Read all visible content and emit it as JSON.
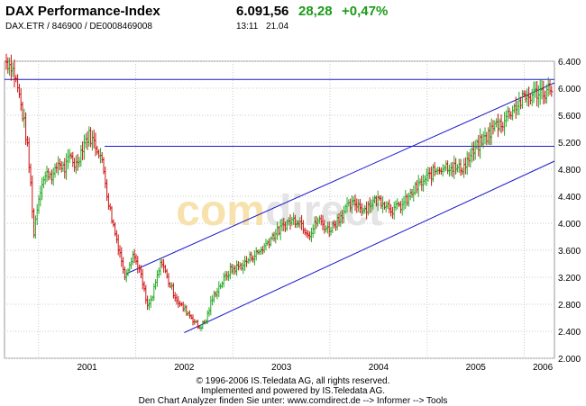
{
  "header": {
    "title": "DAX Performance-Index",
    "subtitle": "DAX.ETR / 846900 / DE0008469008",
    "price": "6.091,56",
    "change": "28,28",
    "change_pct": "+0,47%",
    "time": "13:11",
    "date": "21.04",
    "positive_color": "#1a9a1a"
  },
  "watermark": "comdirect",
  "footer": {
    "line1": "© 1996-2006 IS.Teledata AG, all rights reserved.",
    "line2": "Implemented and powered by IS.Teledata AG.",
    "line3": "Den Chart Analyzer finden Sie unter: www.comdirect.de --> Informer --> Tools"
  },
  "chart_data": {
    "type": "line",
    "title": "DAX Performance-Index",
    "xlabel": "",
    "ylabel": "",
    "x_ticks": [
      "2001",
      "2002",
      "2003",
      "2004",
      "2005",
      "2006"
    ],
    "y_ticks": [
      "2.000",
      "2.400",
      "2.800",
      "3.200",
      "3.600",
      "4.000",
      "4.400",
      "4.800",
      "5.200",
      "5.600",
      "6.000",
      "6.400"
    ],
    "ylim": [
      2000,
      6400
    ],
    "xlim": [
      2000.65,
      2006.31
    ],
    "grid": true,
    "up_color": "#22aa22",
    "down_color": "#cc1111",
    "trendline_color": "#1a1acc",
    "series": [
      {
        "values": [
          [
            2000.65,
            6400
          ],
          [
            2000.72,
            6350
          ],
          [
            2000.78,
            6050
          ],
          [
            2000.85,
            5500
          ],
          [
            2000.88,
            5200
          ],
          [
            2000.93,
            4400
          ],
          [
            2000.95,
            3800
          ],
          [
            2000.98,
            4200
          ],
          [
            2001.03,
            4600
          ],
          [
            2001.1,
            4750
          ],
          [
            2001.16,
            4700
          ],
          [
            2001.2,
            4900
          ],
          [
            2001.27,
            4800
          ],
          [
            2001.33,
            5000
          ],
          [
            2001.38,
            4850
          ],
          [
            2001.42,
            5000
          ],
          [
            2001.47,
            5200
          ],
          [
            2001.52,
            5300
          ],
          [
            2001.57,
            5200
          ],
          [
            2001.63,
            5050
          ],
          [
            2001.68,
            4700
          ],
          [
            2001.72,
            4300
          ],
          [
            2001.78,
            3900
          ],
          [
            2001.85,
            3500
          ],
          [
            2001.88,
            3200
          ],
          [
            2001.92,
            3350
          ],
          [
            2001.97,
            3550
          ],
          [
            2002.03,
            3350
          ],
          [
            2002.08,
            3050
          ],
          [
            2002.12,
            2750
          ],
          [
            2002.17,
            2900
          ],
          [
            2002.22,
            3200
          ],
          [
            2002.27,
            3450
          ],
          [
            2002.32,
            3200
          ],
          [
            2002.38,
            3000
          ],
          [
            2002.45,
            2800
          ],
          [
            2002.52,
            2700
          ],
          [
            2002.58,
            2600
          ],
          [
            2002.65,
            2450
          ],
          [
            2002.72,
            2550
          ],
          [
            2002.78,
            2850
          ],
          [
            2002.83,
            3000
          ],
          [
            2002.9,
            3150
          ],
          [
            2002.97,
            3300
          ],
          [
            2003.05,
            3350
          ],
          [
            2003.12,
            3400
          ],
          [
            2003.18,
            3500
          ],
          [
            2003.25,
            3550
          ],
          [
            2003.32,
            3650
          ],
          [
            2003.4,
            3800
          ],
          [
            2003.48,
            3900
          ],
          [
            2003.55,
            4000
          ],
          [
            2003.62,
            4050
          ],
          [
            2003.68,
            4050
          ],
          [
            2003.75,
            3900
          ],
          [
            2003.8,
            3850
          ],
          [
            2003.87,
            4050
          ],
          [
            2003.92,
            4000
          ],
          [
            2003.98,
            3900
          ],
          [
            2004.05,
            4000
          ],
          [
            2004.1,
            4100
          ],
          [
            2004.15,
            4200
          ],
          [
            2004.2,
            4250
          ],
          [
            2004.27,
            4300
          ],
          [
            2004.35,
            4200
          ],
          [
            2004.42,
            4300
          ],
          [
            2004.5,
            4350
          ],
          [
            2004.57,
            4300
          ],
          [
            2004.65,
            4200
          ],
          [
            2004.72,
            4250
          ],
          [
            2004.8,
            4350
          ],
          [
            2004.87,
            4500
          ],
          [
            2004.95,
            4600
          ],
          [
            2005.02,
            4700
          ],
          [
            2005.1,
            4800
          ],
          [
            2005.18,
            4850
          ],
          [
            2005.25,
            4850
          ],
          [
            2005.32,
            4800
          ],
          [
            2005.38,
            4850
          ],
          [
            2005.45,
            5000
          ],
          [
            2005.55,
            5200
          ],
          [
            2005.62,
            5300
          ],
          [
            2005.7,
            5450
          ],
          [
            2005.78,
            5500
          ],
          [
            2005.85,
            5650
          ],
          [
            2005.92,
            5750
          ],
          [
            2006.0,
            5850
          ],
          [
            2006.08,
            5900
          ],
          [
            2006.15,
            5950
          ],
          [
            2006.22,
            5950
          ],
          [
            2006.3,
            6050
          ]
        ]
      }
    ],
    "trendlines": [
      {
        "from": [
          2000.65,
          6130
        ],
        "to": [
          2006.31,
          6130
        ]
      },
      {
        "from": [
          2001.68,
          5140
        ],
        "to": [
          2006.31,
          5140
        ]
      },
      {
        "from": [
          2001.9,
          3250
        ],
        "to": [
          2006.31,
          6080
        ]
      },
      {
        "from": [
          2002.5,
          2380
        ],
        "to": [
          2006.31,
          4920
        ]
      }
    ]
  }
}
